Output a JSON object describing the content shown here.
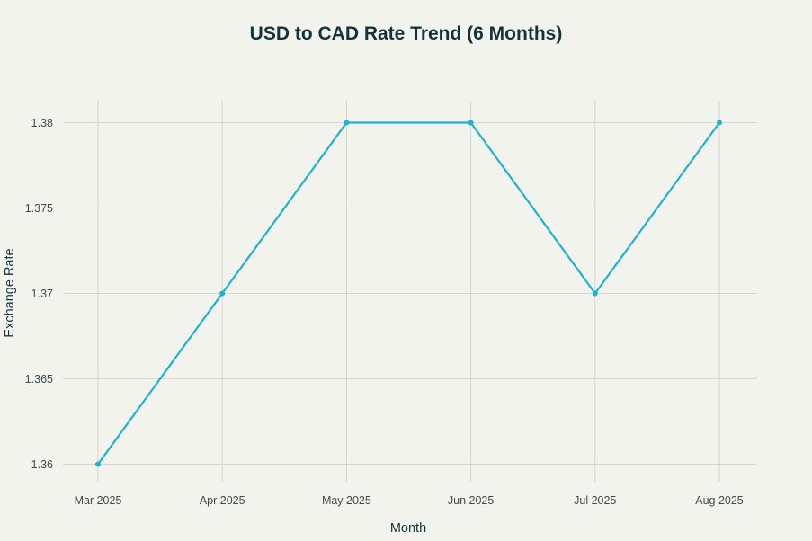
{
  "chart_data": {
    "type": "line",
    "title": "USD to CAD Rate Trend (6 Months)",
    "xlabel": "Month",
    "ylabel": "Exchange Rate",
    "categories": [
      "Mar 2025",
      "Apr 2025",
      "May 2025",
      "Jun 2025",
      "Jul 2025",
      "Aug 2025"
    ],
    "series": [
      {
        "name": "USD to CAD",
        "values": [
          1.36,
          1.37,
          1.38,
          1.38,
          1.37,
          1.38
        ],
        "color": "#1fb2cc"
      }
    ],
    "yticks": [
      1.36,
      1.365,
      1.37,
      1.375,
      1.38
    ],
    "ytick_labels": [
      "1.36",
      "1.365",
      "1.37",
      "1.375",
      "1.38"
    ],
    "ylim": [
      1.36,
      1.38
    ],
    "grid": true,
    "legend": "none",
    "colors": {
      "background": "#f3f3ee",
      "grid": "#d6d6d0",
      "text": "#13343b",
      "line": "#1fb2cc"
    }
  }
}
